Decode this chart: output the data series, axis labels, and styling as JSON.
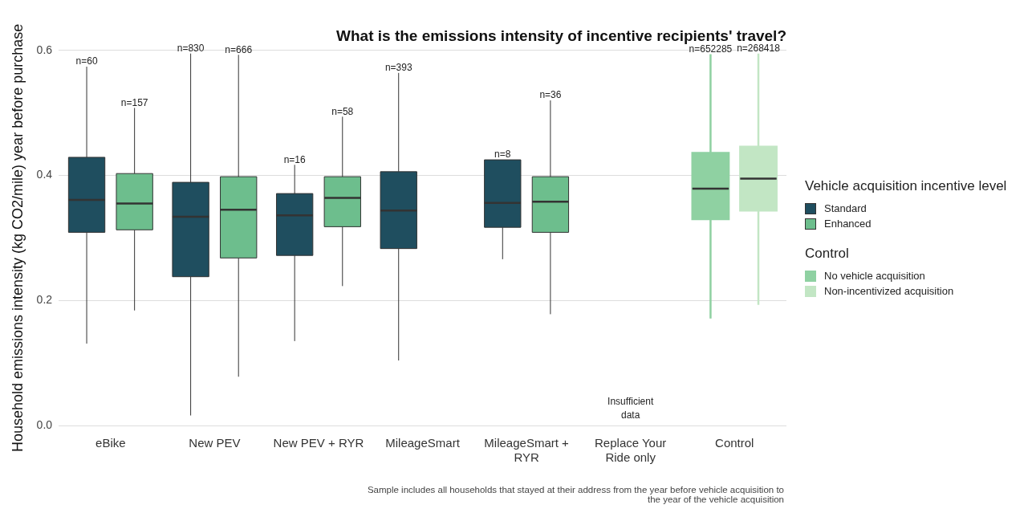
{
  "chart_data": {
    "type": "box",
    "title": "What is the emissions intensity of incentive recipients' travel?",
    "ylabel": "Household emissions intensity (kg CO2/mile) year before purchase",
    "legend_title": "Vehicle acquisition incentive level",
    "categories": [
      "eBike",
      "New PEV",
      "New PEV + RYR",
      "MileageSmart",
      "MileageSmart + RYR",
      "Replace Your Ride only",
      "Control"
    ],
    "ylim": [
      0,
      0.6
    ],
    "yticks": [
      {
        "value": 0,
        "label": "0.0"
      },
      {
        "value": 0.2,
        "label": "0.2"
      },
      {
        "value": 0.4,
        "label": "0.4"
      },
      {
        "value": 0.6,
        "label": "0.6"
      }
    ],
    "grid": "y",
    "legend": "right",
    "series": [
      {
        "name": "Standard",
        "color": "#1f4e5f",
        "boxes": [
          {
            "low": 0.131,
            "q1": 0.309,
            "median": 0.361,
            "q3": 0.429,
            "high": 0.574
          },
          {
            "low": 0.016,
            "q1": 0.238,
            "median": 0.334,
            "q3": 0.389,
            "high": 0.595
          },
          {
            "low": 0.135,
            "q1": 0.272,
            "median": 0.336,
            "q3": 0.371,
            "high": 0.417
          },
          {
            "low": 0.104,
            "q1": 0.283,
            "median": 0.344,
            "q3": 0.406,
            "high": 0.564
          },
          {
            "low": 0.266,
            "q1": 0.317,
            "median": 0.356,
            "q3": 0.425,
            "high": 0.425
          },
          null,
          null
        ]
      },
      {
        "name": "Enhanced",
        "color": "#6dbe8d",
        "boxes": [
          {
            "low": 0.184,
            "q1": 0.313,
            "median": 0.355,
            "q3": 0.403,
            "high": 0.508
          },
          {
            "low": 0.078,
            "q1": 0.268,
            "median": 0.345,
            "q3": 0.398,
            "high": 0.593
          },
          {
            "low": 0.223,
            "q1": 0.318,
            "median": 0.364,
            "q3": 0.398,
            "high": 0.494
          },
          null,
          {
            "low": 0.178,
            "q1": 0.309,
            "median": 0.358,
            "q3": 0.398,
            "high": 0.52
          },
          null,
          null
        ]
      },
      {
        "name": "No vehicle acquisition",
        "color": "#8fd1a2",
        "boxes": [
          null,
          null,
          null,
          null,
          null,
          null,
          {
            "low": 0.171,
            "q1": 0.33,
            "median": 0.379,
            "q3": 0.436,
            "high": 0.594
          }
        ]
      },
      {
        "name": "Non-incentivized acquisition",
        "color": "#c2e6c4",
        "boxes": [
          null,
          null,
          null,
          null,
          null,
          null,
          {
            "low": 0.193,
            "q1": 0.344,
            "median": 0.395,
            "q3": 0.446,
            "high": 0.595
          }
        ]
      }
    ],
    "annotations": [
      "Control",
      "Sample includes all households that stayed at their address from the year before vehicle acquisition to the year of the vehicle acquisition",
      "n=60",
      "n=157",
      "n=830",
      "n=666",
      "n=16",
      "n=58",
      "n=393",
      "n=8",
      "n=36",
      "n=652285",
      "n=268418",
      "Insufficient data"
    ]
  }
}
